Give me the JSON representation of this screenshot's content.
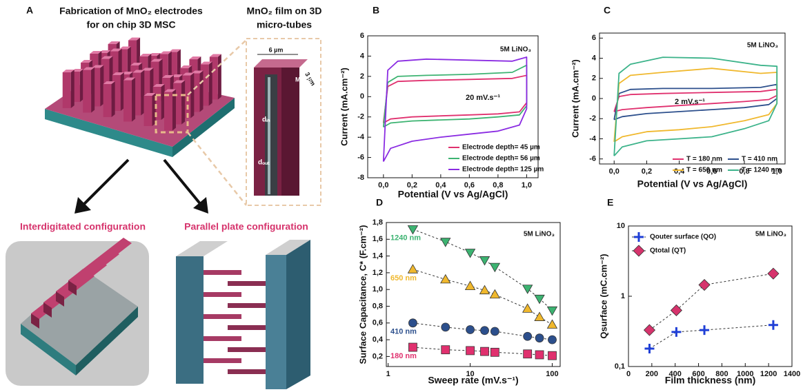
{
  "panel_a": {
    "letter": "A",
    "title": [
      "Fabrication of MnO₂ electrodes",
      "for on chip 3D MSC"
    ],
    "inset_title": [
      "MnO₂ film on 3D",
      "micro-tubes"
    ],
    "inset_labels": [
      "6 µm",
      "3 µm",
      "MnO₂",
      "dᵢₙ",
      "dₒᵤₜ"
    ],
    "config_left": "Interdigitated configuration",
    "config_right": "Parallel plate configuration"
  },
  "chart_data": [
    {
      "type": "line",
      "panel": "B",
      "title": "5M LiNO₃",
      "annotation": "20 mV.s⁻¹",
      "x_label": "Potential (V vs Ag/AgCl)",
      "y_label": "Current (mA.cm⁻²)",
      "xlim": [
        -0.11,
        1.08
      ],
      "ylim": [
        -8,
        6
      ],
      "xticks": [
        {
          "value": 0,
          "label": "0,0"
        },
        {
          "value": 0.2,
          "label": "0,2"
        },
        {
          "value": 0.4,
          "label": "0,4"
        },
        {
          "value": 0.6,
          "label": "0,6"
        },
        {
          "value": 0.8,
          "label": "0,8"
        },
        {
          "value": 1,
          "label": "1,0"
        }
      ],
      "yticks": [
        -8,
        -6,
        -4,
        -2,
        0,
        2,
        4,
        6
      ],
      "series": [
        {
          "name": "Electrode depth= 45 µm",
          "color": "#e0306e",
          "x": [
            0,
            0.05,
            0.2,
            0.4,
            0.6,
            0.8,
            0.95,
            1.0,
            1.0,
            0.9,
            0.6,
            0.3,
            0.1,
            0.03,
            0
          ],
          "y": [
            -2.6,
            -2.2,
            -2.0,
            -1.9,
            -1.8,
            -1.7,
            -1.5,
            -0.6,
            2.1,
            1.8,
            1.7,
            1.6,
            1.5,
            1.0,
            -2.6
          ]
        },
        {
          "name": "Electrode depth= 56 µm",
          "color": "#3cb371",
          "x": [
            0,
            0.05,
            0.2,
            0.4,
            0.6,
            0.8,
            0.95,
            1.0,
            1.0,
            0.9,
            0.6,
            0.3,
            0.1,
            0.03,
            0
          ],
          "y": [
            -3.0,
            -2.6,
            -2.4,
            -2.3,
            -2.2,
            -2.0,
            -1.8,
            -0.9,
            3.1,
            2.4,
            2.2,
            2.1,
            2.0,
            1.4,
            -3.0
          ]
        },
        {
          "name": "Electrode depth= 125 µm",
          "color": "#8a2be2",
          "x": [
            0,
            0.05,
            0.2,
            0.4,
            0.6,
            0.8,
            0.95,
            1.0,
            1.0,
            0.9,
            0.6,
            0.3,
            0.1,
            0.03,
            0
          ],
          "y": [
            -6.4,
            -5.1,
            -4.4,
            -4.0,
            -3.7,
            -3.4,
            -2.8,
            -1.2,
            3.9,
            3.5,
            3.6,
            3.7,
            3.5,
            2.6,
            -6.4
          ]
        }
      ]
    },
    {
      "type": "line",
      "panel": "C",
      "title": "5M LiNO₃",
      "annotation": "2 mV.s⁻¹",
      "x_label": "Potential (V vs Ag/AgCl)",
      "y_label": "Current (mA.cm⁻²)",
      "xlim": [
        -0.09,
        1.05
      ],
      "ylim": [
        -6.5,
        6.5
      ],
      "xticks": [
        {
          "value": 0,
          "label": "0,0"
        },
        {
          "value": 0.2,
          "label": "0,2"
        },
        {
          "value": 0.4,
          "label": "0,4"
        },
        {
          "value": 0.6,
          "label": "0,6"
        },
        {
          "value": 0.8,
          "label": "0,8"
        },
        {
          "value": 1,
          "label": "1,0"
        }
      ],
      "yticks": [
        -6,
        -4,
        -2,
        0,
        2,
        4,
        6
      ],
      "series": [
        {
          "name": "T = 180 nm",
          "color": "#e0306e",
          "x": [
            0,
            0.05,
            0.2,
            0.4,
            0.6,
            0.8,
            0.95,
            1.0,
            1.0,
            0.9,
            0.6,
            0.3,
            0.1,
            0.03,
            0
          ],
          "y": [
            -1.3,
            -1.1,
            -0.9,
            -0.7,
            -0.5,
            -0.3,
            -0.1,
            0.3,
            0.9,
            0.7,
            0.6,
            0.5,
            0.4,
            0.2,
            -1.3
          ]
        },
        {
          "name": "T = 410 nm",
          "color": "#2c4f8c",
          "x": [
            0,
            0.05,
            0.2,
            0.4,
            0.6,
            0.8,
            0.95,
            1.0,
            1.0,
            0.9,
            0.6,
            0.3,
            0.1,
            0.03,
            0
          ],
          "y": [
            -2.1,
            -1.8,
            -1.5,
            -1.3,
            -1.1,
            -0.9,
            -0.6,
            0.0,
            1.4,
            1.1,
            1.0,
            1.0,
            0.9,
            0.5,
            -2.1
          ]
        },
        {
          "name": "T = 650 nm",
          "color": "#f0b82d",
          "x": [
            0,
            0.05,
            0.2,
            0.4,
            0.6,
            0.8,
            0.95,
            1.0,
            1.0,
            0.9,
            0.6,
            0.3,
            0.1,
            0.03,
            0
          ],
          "y": [
            -4.3,
            -3.8,
            -3.3,
            -3.1,
            -2.8,
            -2.2,
            -1.6,
            -0.5,
            2.6,
            2.5,
            3.0,
            2.6,
            2.3,
            1.5,
            -4.3
          ]
        },
        {
          "name": "T = 1240 nm",
          "color": "#3cb38a",
          "x": [
            0,
            0.05,
            0.2,
            0.4,
            0.6,
            0.8,
            0.95,
            1.0,
            1.0,
            0.9,
            0.6,
            0.3,
            0.1,
            0.03,
            0
          ],
          "y": [
            -5.7,
            -4.8,
            -4.2,
            -4.0,
            -3.8,
            -3.0,
            -2.2,
            -0.5,
            3.2,
            3.3,
            4.0,
            4.1,
            3.4,
            2.5,
            -5.7
          ]
        }
      ]
    },
    {
      "type": "scatter",
      "panel": "D",
      "title": "5M LiNO₃",
      "x_label": "Sweep rate (mV.s⁻¹)",
      "y_label": "Surface Capacitance, C* (F.cm⁻²)",
      "x_log": true,
      "xlim": [
        0.95,
        125
      ],
      "ylim": [
        0.08,
        1.8
      ],
      "xticks": [
        1,
        10,
        100
      ],
      "yticks": [
        {
          "value": 0.2,
          "label": "0,2"
        },
        {
          "value": 0.4,
          "label": "0,4"
        },
        {
          "value": 0.6,
          "label": "0,6"
        },
        {
          "value": 0.8,
          "label": "0,8"
        },
        {
          "value": 1,
          "label": "1,0"
        },
        {
          "value": 1.2,
          "label": "1,2"
        },
        {
          "value": 1.4,
          "label": "1,4"
        },
        {
          "value": 1.6,
          "label": "1,6"
        },
        {
          "value": 1.8,
          "label": "1,8"
        }
      ],
      "x": [
        2,
        5,
        10,
        15,
        20,
        50,
        70,
        100
      ],
      "series": [
        {
          "name": "1240 nm",
          "color": "#3cb371",
          "marker": "triangle-down",
          "values": [
            1.72,
            1.57,
            1.44,
            1.35,
            1.27,
            1.01,
            0.89,
            0.75
          ]
        },
        {
          "name": "650 nm",
          "color": "#f0b82d",
          "marker": "triangle-up",
          "values": [
            1.24,
            1.12,
            1.04,
            0.99,
            0.94,
            0.77,
            0.67,
            0.58
          ]
        },
        {
          "name": "410 nm",
          "color": "#2c4f8c",
          "marker": "circle",
          "values": [
            0.6,
            0.55,
            0.52,
            0.51,
            0.5,
            0.44,
            0.42,
            0.4
          ]
        },
        {
          "name": "180 nm",
          "color": "#e0306e",
          "marker": "square",
          "values": [
            0.31,
            0.28,
            0.27,
            0.26,
            0.25,
            0.23,
            0.22,
            0.21
          ]
        }
      ]
    },
    {
      "type": "scatter",
      "panel": "E",
      "title": "5M LiNO₃",
      "x_label": "Film thickness (nm)",
      "y_label": "Qsurface (mC.cm⁻²)",
      "y_log": true,
      "xlim": [
        0,
        1400
      ],
      "ylim": [
        0.1,
        10
      ],
      "xticks": [
        0,
        200,
        400,
        600,
        800,
        1000,
        1200,
        1400
      ],
      "yticks": [
        {
          "value": 0.1,
          "label": "0,1"
        },
        1,
        10
      ],
      "x": [
        180,
        410,
        650,
        1240
      ],
      "series": [
        {
          "name": "Qouter surface (QO)",
          "color": "#1f3fd6",
          "marker": "plus",
          "values": [
            0.18,
            0.31,
            0.33,
            0.39
          ]
        },
        {
          "name": "Qtotal (QT)",
          "color": "#d6336c",
          "marker": "diamond",
          "values": [
            0.33,
            0.63,
            1.45,
            2.1
          ]
        }
      ]
    }
  ]
}
